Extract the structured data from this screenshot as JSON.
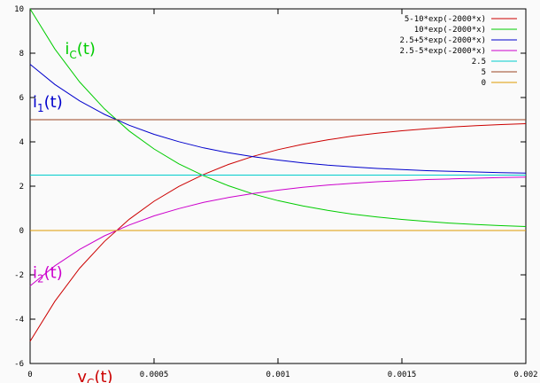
{
  "chart_data": {
    "type": "line",
    "xlim": [
      0,
      0.002
    ],
    "ylim": [
      -6,
      10
    ],
    "x_ticks": [
      "0",
      "0.0005",
      "0.001",
      "0.0015",
      "0.002"
    ],
    "y_ticks": [
      "-6",
      "-4",
      "-2",
      "0",
      "2",
      "4",
      "6",
      "8",
      "10"
    ],
    "grid": false,
    "legend_position": "top-right",
    "series": [
      {
        "name": "5-10*exp(-2000*x)",
        "color": "#cc0000",
        "x": [
          0,
          0.0001,
          0.0002,
          0.0003,
          0.0004,
          0.0005,
          0.0006,
          0.0007,
          0.0008,
          0.0009,
          0.001,
          0.0011,
          0.0012,
          0.0013,
          0.0014,
          0.0015,
          0.0016,
          0.0017,
          0.0018,
          0.0019,
          0.002
        ],
        "y": [
          -5,
          -3.19,
          -1.7,
          -0.49,
          0.51,
          1.32,
          1.99,
          2.53,
          2.98,
          3.35,
          3.65,
          3.89,
          4.09,
          4.26,
          4.39,
          4.5,
          4.59,
          4.67,
          4.73,
          4.78,
          4.82
        ]
      },
      {
        "name": "10*exp(-2000*x)",
        "color": "#00cc00",
        "x": [
          0,
          0.0001,
          0.0002,
          0.0003,
          0.0004,
          0.0005,
          0.0006,
          0.0007,
          0.0008,
          0.0009,
          0.001,
          0.0011,
          0.0012,
          0.0013,
          0.0014,
          0.0015,
          0.0016,
          0.0017,
          0.0018,
          0.0019,
          0.002
        ],
        "y": [
          10,
          8.19,
          6.7,
          5.49,
          4.49,
          3.68,
          3.01,
          2.47,
          2.02,
          1.65,
          1.35,
          1.11,
          0.91,
          0.74,
          0.61,
          0.5,
          0.41,
          0.33,
          0.27,
          0.22,
          0.18
        ]
      },
      {
        "name": "2.5+5*exp(-2000*x)",
        "color": "#0000cc",
        "x": [
          0,
          0.0001,
          0.0002,
          0.0003,
          0.0004,
          0.0005,
          0.0006,
          0.0007,
          0.0008,
          0.0009,
          0.001,
          0.0011,
          0.0012,
          0.0013,
          0.0014,
          0.0015,
          0.0016,
          0.0017,
          0.0018,
          0.0019,
          0.002
        ],
        "y": [
          7.5,
          6.59,
          5.85,
          5.24,
          4.75,
          4.34,
          4.01,
          3.73,
          3.51,
          3.33,
          3.18,
          3.05,
          2.95,
          2.87,
          2.8,
          2.75,
          2.7,
          2.67,
          2.64,
          2.61,
          2.59
        ]
      },
      {
        "name": "2.5-5*exp(-2000*x)",
        "color": "#cc00cc",
        "x": [
          0,
          0.0001,
          0.0002,
          0.0003,
          0.0004,
          0.0005,
          0.0006,
          0.0007,
          0.0008,
          0.0009,
          0.001,
          0.0011,
          0.0012,
          0.0013,
          0.0014,
          0.0015,
          0.0016,
          0.0017,
          0.0018,
          0.0019,
          0.002
        ],
        "y": [
          -2.5,
          -1.59,
          -0.85,
          -0.24,
          0.25,
          0.66,
          0.99,
          1.27,
          1.49,
          1.67,
          1.82,
          1.95,
          2.05,
          2.13,
          2.2,
          2.25,
          2.3,
          2.33,
          2.36,
          2.39,
          2.41
        ]
      },
      {
        "name": "2.5",
        "color": "#00cccc",
        "x": [
          0,
          0.002
        ],
        "y": [
          2.5,
          2.5
        ]
      },
      {
        "name": "5",
        "color": "#994422",
        "x": [
          0,
          0.002
        ],
        "y": [
          5,
          5
        ]
      },
      {
        "name": "0",
        "color": "#dd9900",
        "x": [
          0,
          0.002
        ],
        "y": [
          0,
          0
        ]
      }
    ],
    "annotations": [
      {
        "main": "i",
        "sub": "C",
        "suffix": "(t)",
        "color": "#00cc00",
        "x": 0.00013,
        "y": 8.2
      },
      {
        "main": "i",
        "sub": "1",
        "suffix": "(t)",
        "color": "#0000cc",
        "x": 0.0,
        "y": 5.8
      },
      {
        "main": "i",
        "sub": "2",
        "suffix": "(t)",
        "color": "#cc00cc",
        "x": 0.0,
        "y": -1.9
      },
      {
        "main": "v",
        "sub": "C",
        "suffix": "(t)",
        "color": "#cc0000",
        "x": 0.00018,
        "y": -6.6
      }
    ]
  }
}
